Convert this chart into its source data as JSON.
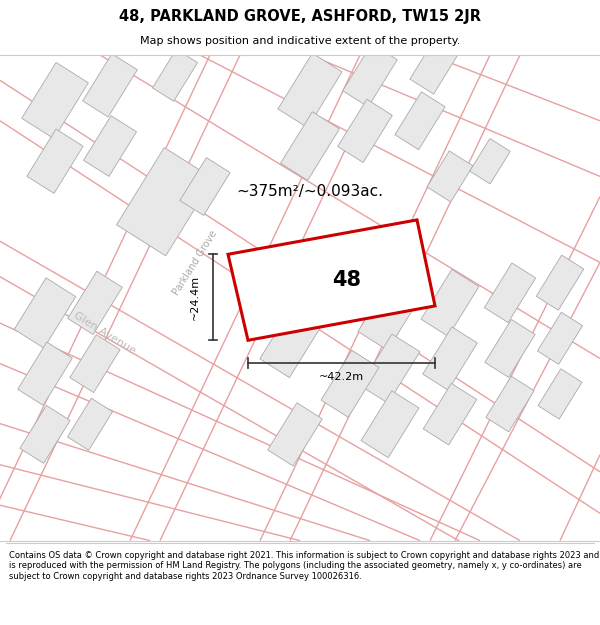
{
  "title": "48, PARKLAND GROVE, ASHFORD, TW15 2JR",
  "subtitle": "Map shows position and indicative extent of the property.",
  "footer": "Contains OS data © Crown copyright and database right 2021. This information is subject to Crown copyright and database rights 2023 and is reproduced with the permission of HM Land Registry. The polygons (including the associated geometry, namely x, y co-ordinates) are subject to Crown copyright and database rights 2023 Ordnance Survey 100026316.",
  "area_label": "~375m²/~0.093ac.",
  "width_label": "~42.2m",
  "height_label": "~24.4m",
  "number_label": "48",
  "map_bg": "#ffffff",
  "road_line_color": "#e8a0a0",
  "building_fill": "#e8e8e8",
  "building_edge": "#aaaaaa",
  "highlight_color": "#cc0000",
  "title_bg": "#ffffff",
  "footer_bg": "#ffffff",
  "street_label_color": "#aaaaaa",
  "measure_color": "#333333"
}
